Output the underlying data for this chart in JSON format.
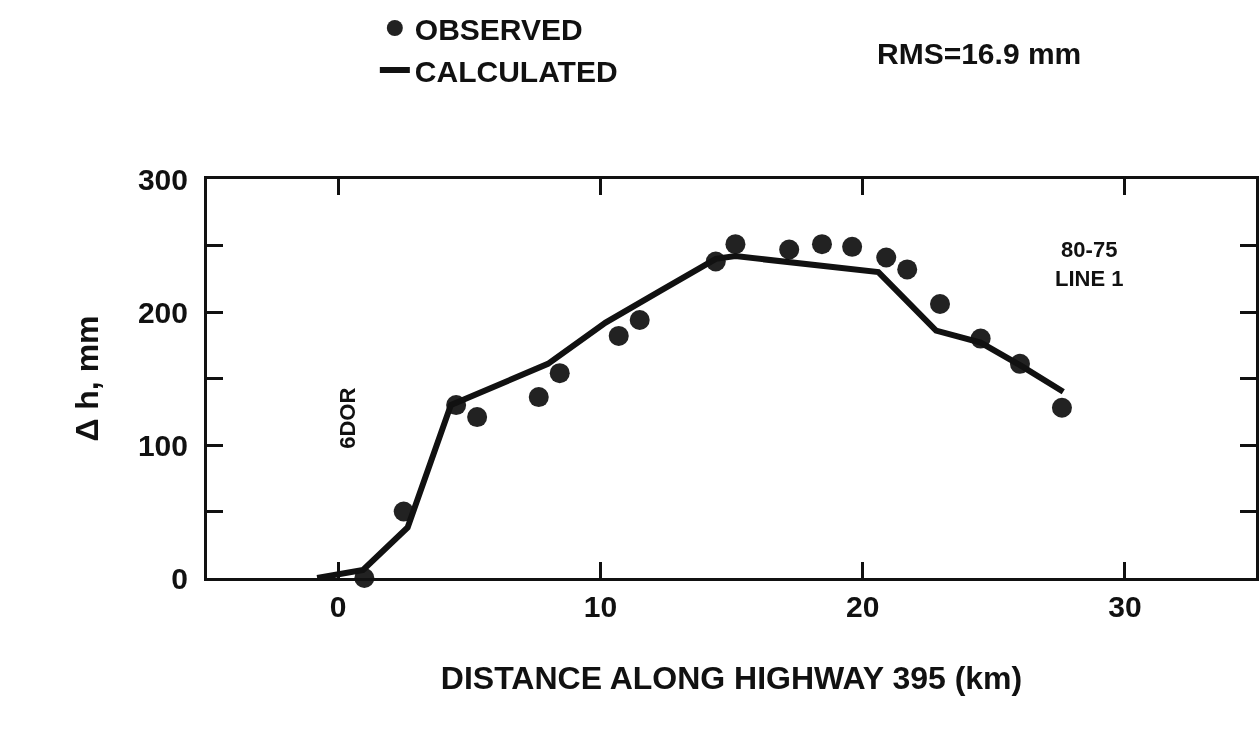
{
  "chart_data": {
    "type": "scatter",
    "xlabel": "DISTANCE ALONG HIGHWAY 395 (km)",
    "ylabel": "Δ h, mm",
    "annotations": [
      "RMS=16.9 mm",
      "6DOR",
      "80-75\nLINE 1"
    ],
    "series": [
      {
        "name": "OBSERVED",
        "marker": "circle",
        "color": "#222222",
        "x": [
          1.0,
          2.5,
          4.5,
          5.3,
          7.65,
          8.45,
          10.7,
          11.5,
          14.4,
          15.15,
          17.2,
          18.45,
          19.6,
          20.9,
          21.7,
          22.95,
          24.5,
          26.0,
          27.6
        ],
        "values": [
          0,
          50,
          130,
          121,
          136,
          154,
          182,
          194,
          238,
          251,
          247,
          251,
          249,
          241,
          232,
          206,
          180,
          161,
          128
        ]
      },
      {
        "name": "CALCULATED",
        "type": "line",
        "marker": "none",
        "color": "#111111",
        "x": [
          -0.8,
          0.95,
          2.65,
          4.3,
          8.0,
          10.2,
          12.3,
          14.4,
          15.15,
          20.6,
          22.8,
          24.5,
          26.0,
          27.65
        ],
        "values": [
          0,
          6,
          38,
          130,
          161,
          192,
          216,
          240,
          242,
          230,
          186,
          177,
          160,
          140
        ]
      }
    ],
    "xlim": [
      -5,
      35
    ],
    "xticks": [
      0,
      10,
      20,
      30
    ],
    "ylim": [
      0,
      300
    ],
    "yticks": [
      0,
      {
        "value": 50,
        "label": null
      },
      100,
      {
        "value": 150,
        "label": null
      },
      200,
      {
        "value": 250,
        "label": null
      },
      300
    ],
    "grid": false,
    "legend": "top",
    "line_style": "solid"
  }
}
